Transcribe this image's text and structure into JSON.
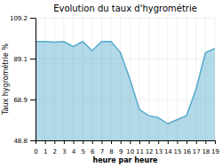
{
  "chart_data": {
    "type": "area",
    "title": "Evolution du taux d'hygrométrie",
    "xlabel": "heure par heure",
    "ylabel": "Taux hygrométrie %",
    "x": [
      0,
      1,
      2,
      3,
      4,
      5,
      6,
      7,
      8,
      9,
      10,
      11,
      12,
      13,
      14,
      15,
      16,
      17,
      18,
      19
    ],
    "values": [
      97.5,
      97.5,
      97.2,
      97.5,
      95.0,
      97.5,
      93.0,
      97.5,
      97.5,
      92.0,
      79,
      64,
      61,
      60,
      57,
      59,
      61,
      74,
      92,
      94
    ],
    "xlim": [
      0,
      19
    ],
    "xticks": [
      0,
      1,
      2,
      3,
      4,
      5,
      6,
      7,
      8,
      9,
      10,
      11,
      12,
      13,
      14,
      15,
      16,
      17,
      18,
      19
    ],
    "ylim": [
      48.8,
      109.2
    ],
    "yticks": [
      48.8,
      68.9,
      89.1,
      109.2
    ],
    "color": "#55aacc",
    "grid": true
  }
}
